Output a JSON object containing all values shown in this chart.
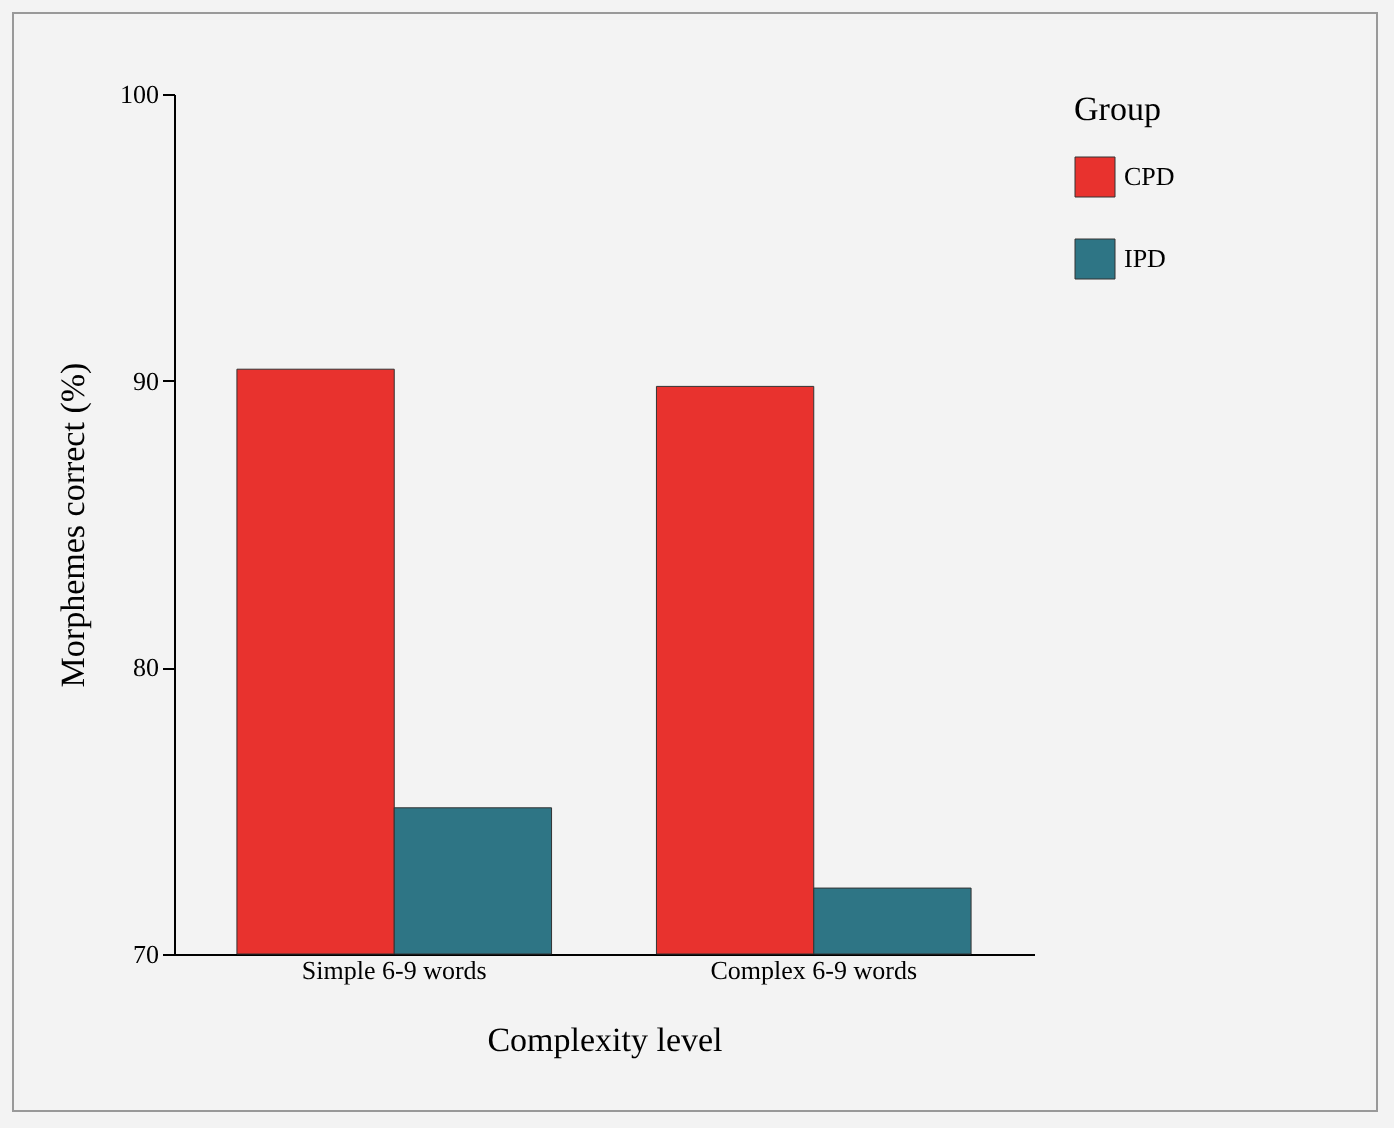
{
  "chart_data": {
    "type": "bar",
    "xlabel": "Complexity level",
    "ylabel": "Morphemes correct (%)",
    "legend_title": "Group",
    "categories": [
      "Simple 6-9 words",
      "Complex 6-9 words"
    ],
    "series": [
      {
        "name": "CPD",
        "color": "#e8322e",
        "values": [
          90.4,
          89.8
        ]
      },
      {
        "name": "IPD",
        "color": "#2e7585",
        "values": [
          75.1,
          72.3
        ]
      }
    ],
    "ylim": [
      70,
      100
    ],
    "yticks": [
      70,
      80,
      90,
      100
    ],
    "grid": false,
    "legend": "right"
  }
}
